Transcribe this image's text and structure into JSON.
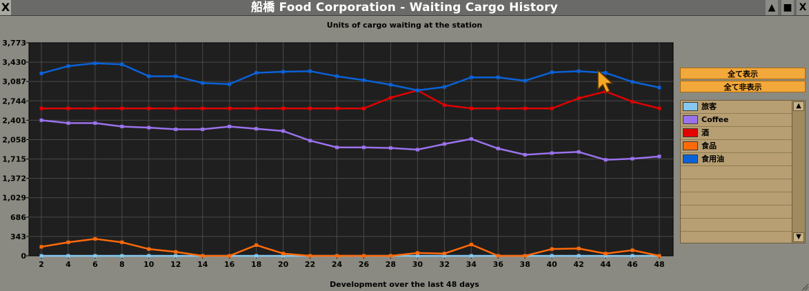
{
  "window": {
    "title": "船橋 Food Corporation - Waiting Cargo History",
    "close_label": "X",
    "buttons": [
      "▲",
      "■",
      "X"
    ]
  },
  "chart_titles": {
    "title": "Units of cargo waiting at the station",
    "xlabel": "Development over the last 48 days"
  },
  "controls": {
    "show_all": "全て表示",
    "hide_all": "全て非表示"
  },
  "legend": [
    {
      "name": "旅客",
      "color": "#86c8f0"
    },
    {
      "name": "Coffee",
      "color": "#9b72ee"
    },
    {
      "name": "酒",
      "color": "#e20000"
    },
    {
      "name": "食品",
      "color": "#ff6a0a"
    },
    {
      "name": "食用油",
      "color": "#0a62d8"
    }
  ],
  "chart_data": {
    "type": "line",
    "title": "Units of cargo waiting at the station",
    "xlabel": "Development over the last 48 days",
    "ylabel": "",
    "x": [
      2,
      4,
      6,
      8,
      10,
      12,
      14,
      16,
      18,
      20,
      22,
      24,
      26,
      28,
      30,
      32,
      34,
      36,
      38,
      40,
      42,
      44,
      46,
      48
    ],
    "ylim": [
      0,
      3773
    ],
    "yticks": [
      "0",
      "343",
      "686",
      "1,029",
      "1,372",
      "1,715",
      "2,058",
      "2,401",
      "2,744",
      "3,087",
      "3,430",
      "3,773"
    ],
    "grid": true,
    "series": [
      {
        "name": "旅客",
        "color": "#86c8f0",
        "values": [
          0,
          0,
          0,
          0,
          0,
          0,
          0,
          0,
          0,
          0,
          0,
          0,
          0,
          0,
          0,
          0,
          0,
          0,
          0,
          0,
          0,
          0,
          0,
          0
        ]
      },
      {
        "name": "Coffee",
        "color": "#9b72ee",
        "values": [
          2401,
          2350,
          2350,
          2290,
          2270,
          2240,
          2240,
          2290,
          2250,
          2210,
          2040,
          1920,
          1920,
          1910,
          1880,
          1980,
          2070,
          1900,
          1790,
          1820,
          1840,
          1700,
          1720,
          1760
        ]
      },
      {
        "name": "酒",
        "color": "#e20000",
        "values": [
          2610,
          2610,
          2610,
          2610,
          2610,
          2610,
          2610,
          2610,
          2610,
          2610,
          2610,
          2610,
          2610,
          2800,
          2930,
          2670,
          2610,
          2610,
          2610,
          2610,
          2790,
          2910,
          2730,
          2610
        ]
      },
      {
        "name": "食品",
        "color": "#ff6a0a",
        "values": [
          160,
          240,
          300,
          240,
          120,
          70,
          0,
          0,
          190,
          40,
          0,
          0,
          0,
          0,
          50,
          40,
          200,
          0,
          0,
          120,
          130,
          40,
          100,
          0
        ]
      },
      {
        "name": "食用油",
        "color": "#0a62d8",
        "values": [
          3230,
          3360,
          3410,
          3390,
          3180,
          3180,
          3060,
          3040,
          3240,
          3260,
          3270,
          3180,
          3110,
          3030,
          2930,
          2990,
          3160,
          3160,
          3100,
          3250,
          3270,
          3240,
          3080,
          2980
        ]
      }
    ]
  }
}
